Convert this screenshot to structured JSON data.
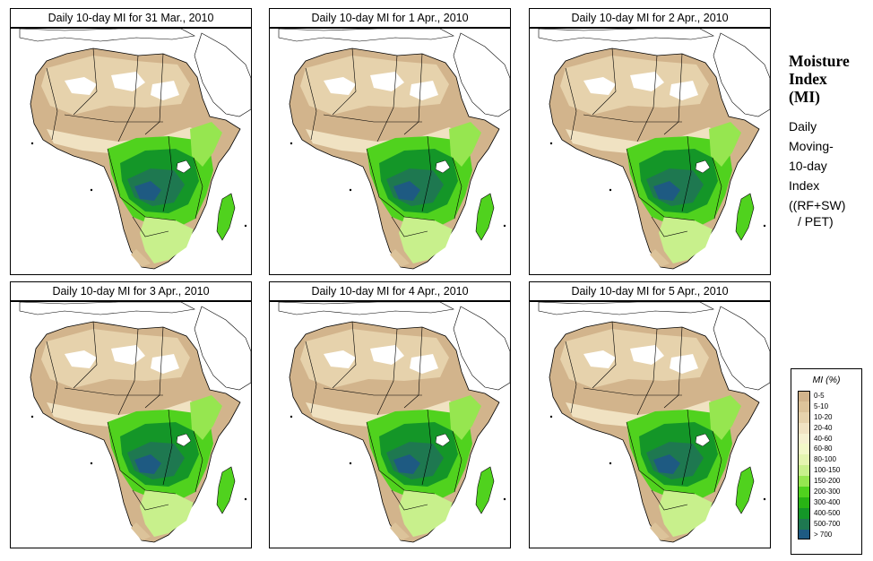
{
  "panels": [
    {
      "title": "Daily 10-day MI for  31 Mar., 2010"
    },
    {
      "title": "Daily 10-day MI for  1 Apr., 2010"
    },
    {
      "title": "Daily 10-day MI for  2 Apr., 2010"
    },
    {
      "title": "Daily 10-day MI for  3 Apr., 2010"
    },
    {
      "title": "Daily 10-day MI for  4 Apr., 2010"
    },
    {
      "title": "Daily 10-day MI for  5 Apr., 2010"
    }
  ],
  "sidebar": {
    "title_lines": [
      "Moisture",
      "Index",
      "(MI)"
    ],
    "subtitle_lines": [
      "Daily",
      "Moving-",
      "10-day",
      "Index"
    ],
    "formula_lines": [
      "((RF+SW)",
      "/ PET)"
    ]
  },
  "legend": {
    "title": "MI (%)",
    "items": [
      {
        "label": "0-5",
        "color": "#d2b48c"
      },
      {
        "label": "5-10",
        "color": "#dcc39a"
      },
      {
        "label": "10-20",
        "color": "#e6d2ac"
      },
      {
        "label": "20-40",
        "color": "#f0e2c2"
      },
      {
        "label": "40-60",
        "color": "#f5f0d0"
      },
      {
        "label": "60-80",
        "color": "#f2f8c8"
      },
      {
        "label": "80-100",
        "color": "#e4f5b0"
      },
      {
        "label": "100-150",
        "color": "#c8f08c"
      },
      {
        "label": "150-200",
        "color": "#96e650"
      },
      {
        "label": "200-300",
        "color": "#50d21e"
      },
      {
        "label": "300-400",
        "color": "#28b414"
      },
      {
        "label": "400-500",
        "color": "#149628"
      },
      {
        "label": "500-700",
        "color": "#1e7850"
      },
      {
        "label": "> 700",
        "color": "#1e5a82"
      }
    ]
  }
}
